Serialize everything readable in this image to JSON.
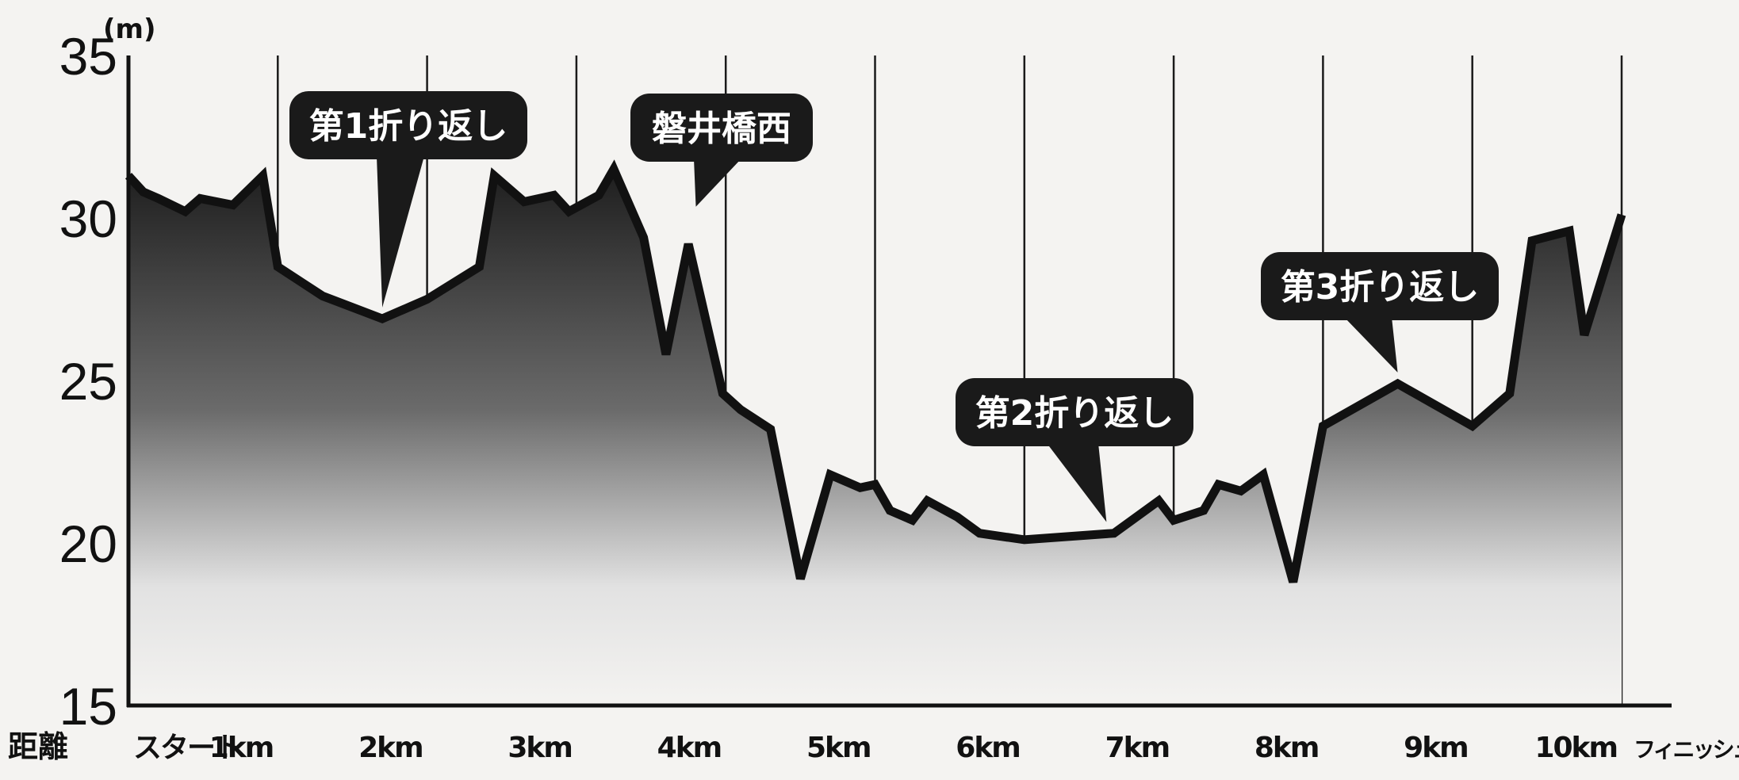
{
  "chart_data": {
    "type": "area",
    "y_unit": "(m)",
    "xlabel": "距離",
    "ylim": [
      15,
      35
    ],
    "xlim": [
      0,
      10.3
    ],
    "yticks": [
      15,
      20,
      25,
      30,
      35
    ],
    "xticks": [
      {
        "x": 0,
        "label": "スタート"
      },
      {
        "x": 1,
        "label": "1km"
      },
      {
        "x": 2,
        "label": "2km"
      },
      {
        "x": 3,
        "label": "3km"
      },
      {
        "x": 4,
        "label": "4km"
      },
      {
        "x": 5,
        "label": "5km"
      },
      {
        "x": 6,
        "label": "6km"
      },
      {
        "x": 7,
        "label": "7km"
      },
      {
        "x": 8,
        "label": "8km"
      },
      {
        "x": 9,
        "label": "9km"
      },
      {
        "x": 10,
        "label": "10km"
      },
      {
        "x": 10.35,
        "label": "フィニッシュ"
      }
    ],
    "grid": true,
    "series": [
      {
        "points": [
          [
            0.0,
            31.3
          ],
          [
            0.1,
            30.8
          ],
          [
            0.2,
            30.6
          ],
          [
            0.38,
            30.2
          ],
          [
            0.48,
            30.6
          ],
          [
            0.7,
            30.4
          ],
          [
            0.9,
            31.3
          ],
          [
            1.0,
            28.5
          ],
          [
            1.3,
            27.6
          ],
          [
            1.7,
            26.9
          ],
          [
            2.0,
            27.5
          ],
          [
            2.35,
            28.5
          ],
          [
            2.45,
            31.3
          ],
          [
            2.65,
            30.5
          ],
          [
            2.85,
            30.7
          ],
          [
            2.95,
            30.2
          ],
          [
            3.15,
            30.7
          ],
          [
            3.25,
            31.5
          ],
          [
            3.45,
            29.4
          ],
          [
            3.6,
            25.8
          ],
          [
            3.75,
            29.2
          ],
          [
            3.98,
            24.6
          ],
          [
            4.1,
            24.1
          ],
          [
            4.3,
            23.5
          ],
          [
            4.5,
            18.9
          ],
          [
            4.7,
            22.1
          ],
          [
            4.9,
            21.7
          ],
          [
            5.0,
            21.8
          ],
          [
            5.1,
            21.0
          ],
          [
            5.25,
            20.7
          ],
          [
            5.35,
            21.3
          ],
          [
            5.55,
            20.8
          ],
          [
            5.7,
            20.3
          ],
          [
            6.0,
            20.1
          ],
          [
            6.6,
            20.3
          ],
          [
            6.9,
            21.3
          ],
          [
            7.0,
            20.7
          ],
          [
            7.2,
            21.0
          ],
          [
            7.3,
            21.8
          ],
          [
            7.45,
            21.6
          ],
          [
            7.6,
            22.1
          ],
          [
            7.8,
            18.8
          ],
          [
            8.0,
            23.6
          ],
          [
            8.5,
            24.9
          ],
          [
            9.0,
            23.6
          ],
          [
            9.25,
            24.6
          ],
          [
            9.4,
            29.3
          ],
          [
            9.65,
            29.6
          ],
          [
            9.75,
            26.4
          ],
          [
            10.0,
            30.1
          ]
        ]
      }
    ],
    "annotations": [
      {
        "text": "第1折り返し",
        "x": 1.7,
        "y": 27.1
      },
      {
        "text": "磐井橋西",
        "x": 3.8,
        "y": 30.2
      },
      {
        "text": "第2折り返し",
        "x": 6.55,
        "y": 20.5
      },
      {
        "text": "第3折り返し",
        "x": 8.5,
        "y": 25.1
      }
    ]
  }
}
